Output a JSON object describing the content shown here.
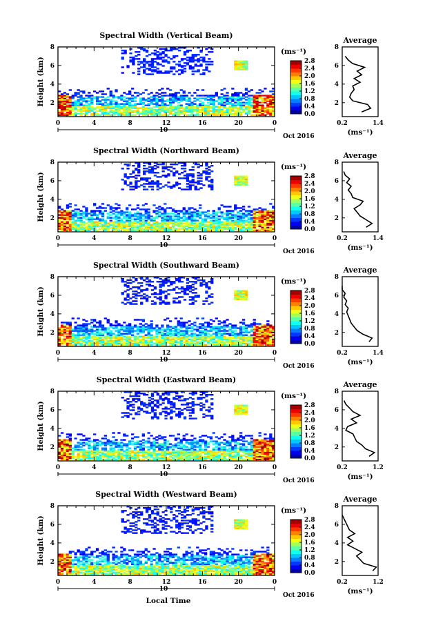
{
  "figure": {
    "xlabel_bottom": "Local Time",
    "date_label": "Oct 2016",
    "day_label": "10"
  },
  "colorbar": {
    "unit": "(ms⁻¹)",
    "ticks": [
      "0.0",
      "0.4",
      "0.8",
      "1.2",
      "1.6",
      "2.0",
      "2.4",
      "2.8"
    ]
  },
  "chart_data": [
    {
      "type": "heatmap",
      "title": "Spectral Width (Vertical Beam)",
      "ylabel": "Height (km)",
      "x_ticks": [
        "0",
        "4",
        "8",
        "12",
        "16",
        "20",
        "0"
      ],
      "y_ticks": [
        "2",
        "4",
        "6",
        "8"
      ],
      "xlim": [
        0,
        24
      ],
      "ylim": [
        0.5,
        8
      ],
      "zlim": [
        0,
        2.8
      ],
      "average_profile": {
        "title": "Average",
        "xlabel": "(ms⁻¹)",
        "x_ticks": [
          "0.2",
          "1.4"
        ],
        "xlim": [
          0.2,
          1.4
        ],
        "y_ticks": [
          "2",
          "4",
          "6",
          "8"
        ],
        "height": [
          1.0,
          1.4,
          1.8,
          2.2,
          2.6,
          3.0,
          3.4,
          3.8,
          4.2,
          4.6,
          5.0,
          5.4,
          5.8,
          6.2,
          6.6,
          7.0
        ],
        "width": [
          0.85,
          1.15,
          1.05,
          0.55,
          0.45,
          0.5,
          0.6,
          0.55,
          0.8,
          0.6,
          0.85,
          0.7,
          0.95,
          0.55,
          0.4,
          0.3
        ]
      }
    },
    {
      "type": "heatmap",
      "title": "Spectral Width (Northward Beam)",
      "ylabel": "Height (km)",
      "x_ticks": [
        "0",
        "4",
        "8",
        "12",
        "16",
        "20",
        "0"
      ],
      "y_ticks": [
        "2",
        "4",
        "6",
        "8"
      ],
      "xlim": [
        0,
        24
      ],
      "ylim": [
        0.5,
        8
      ],
      "zlim": [
        0,
        2.8
      ],
      "average_profile": {
        "title": "Average",
        "xlabel": "(ms⁻¹)",
        "x_ticks": [
          "0.2",
          "1.4"
        ],
        "xlim": [
          0.2,
          1.4
        ],
        "y_ticks": [
          "2",
          "4",
          "6",
          "8"
        ],
        "height": [
          1.0,
          1.4,
          1.8,
          2.2,
          2.6,
          3.0,
          3.4,
          3.8,
          4.2,
          4.6,
          5.0,
          5.4,
          5.8,
          6.2,
          6.6,
          7.0
        ],
        "width": [
          1.0,
          1.2,
          1.0,
          0.8,
          0.7,
          0.6,
          0.8,
          0.9,
          0.55,
          0.5,
          0.4,
          0.5,
          0.35,
          0.45,
          0.3,
          0.25
        ]
      }
    },
    {
      "type": "heatmap",
      "title": "Spectral Width (Southward Beam)",
      "ylabel": "Height (km)",
      "x_ticks": [
        "0",
        "4",
        "8",
        "12",
        "16",
        "20",
        "0"
      ],
      "y_ticks": [
        "2",
        "4",
        "6",
        "8"
      ],
      "xlim": [
        0,
        24
      ],
      "ylim": [
        0.5,
        8
      ],
      "zlim": [
        0,
        2.8
      ],
      "average_profile": {
        "title": "Average",
        "xlabel": "(ms⁻¹)",
        "x_ticks": [
          "0.2",
          "1.4"
        ],
        "xlim": [
          0.2,
          1.4
        ],
        "y_ticks": [
          "2",
          "4",
          "6",
          "8"
        ],
        "height": [
          1.0,
          1.4,
          1.8,
          2.2,
          2.6,
          3.0,
          3.4,
          3.8,
          4.2,
          4.6,
          5.0,
          5.4,
          5.8,
          6.2,
          6.6,
          7.0
        ],
        "width": [
          1.1,
          1.2,
          0.9,
          0.7,
          0.6,
          0.5,
          0.45,
          0.4,
          0.35,
          0.4,
          0.3,
          0.35,
          0.25,
          0.3,
          0.2,
          0.2
        ]
      }
    },
    {
      "type": "heatmap",
      "title": "Spectral Width (Eastward Beam)",
      "ylabel": "Height (km)",
      "x_ticks": [
        "0",
        "4",
        "8",
        "12",
        "16",
        "20",
        "0"
      ],
      "y_ticks": [
        "2",
        "4",
        "6",
        "8"
      ],
      "xlim": [
        0,
        24
      ],
      "ylim": [
        0.5,
        8
      ],
      "zlim": [
        0,
        2.8
      ],
      "average_profile": {
        "title": "Average",
        "xlabel": "(ms⁻¹)",
        "x_ticks": [
          "0.2",
          "1.2"
        ],
        "xlim": [
          0.2,
          1.2
        ],
        "y_ticks": [
          "2",
          "4",
          "6",
          "8"
        ],
        "height": [
          1.0,
          1.4,
          1.8,
          2.2,
          2.6,
          3.0,
          3.4,
          3.8,
          4.2,
          4.6,
          5.0,
          5.4,
          5.8,
          6.2,
          6.6,
          7.0
        ],
        "width": [
          0.95,
          1.1,
          0.85,
          0.75,
          0.6,
          0.55,
          0.5,
          0.3,
          0.35,
          0.6,
          0.45,
          0.7,
          0.5,
          0.4,
          0.3,
          0.25
        ]
      }
    },
    {
      "type": "heatmap",
      "title": "Spectral Width (Westward Beam)",
      "ylabel": "Height (km)",
      "x_ticks": [
        "0",
        "4",
        "8",
        "12",
        "16",
        "20",
        "0"
      ],
      "y_ticks": [
        "2",
        "4",
        "6",
        "8"
      ],
      "xlim": [
        0,
        24
      ],
      "ylim": [
        0.5,
        8
      ],
      "zlim": [
        0,
        2.8
      ],
      "average_profile": {
        "title": "Average",
        "xlabel": "(ms⁻¹)",
        "x_ticks": [
          "0.2",
          "1.2"
        ],
        "xlim": [
          0.2,
          1.2
        ],
        "y_ticks": [
          "2",
          "4",
          "6",
          "8"
        ],
        "height": [
          1.0,
          1.4,
          1.8,
          2.2,
          2.6,
          3.0,
          3.4,
          3.8,
          4.2,
          4.6,
          5.0,
          5.4,
          5.8,
          6.2,
          6.6,
          7.0
        ],
        "width": [
          1.05,
          1.15,
          0.8,
          0.7,
          0.6,
          0.75,
          0.55,
          0.35,
          0.5,
          0.35,
          0.55,
          0.4,
          0.35,
          0.3,
          0.25,
          0.2
        ]
      }
    }
  ]
}
